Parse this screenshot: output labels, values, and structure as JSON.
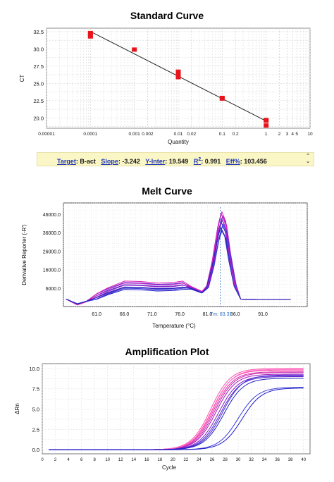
{
  "standard_curve": {
    "title": "Standard Curve",
    "stats": {
      "target_label": "Target",
      "target_value": "B-act",
      "slope_label": "Slope",
      "slope_value": "-3.242",
      "yinter_label": "Y-Inter",
      "yinter_value": "19.549",
      "r2_label": "R",
      "r2_sup": "2",
      "r2_value": "0.991",
      "eff_label": "Eff%",
      "eff_value": "103.456"
    }
  },
  "melt_curve": {
    "title": "Melt Curve"
  },
  "amplification_plot": {
    "title": "Amplification Plot"
  },
  "chart_data": [
    {
      "id": "standard_curve",
      "type": "scatter",
      "title": "Standard Curve",
      "xlabel": "Quantity",
      "ylabel": "CT",
      "xscale": "log",
      "xlim": [
        1e-05,
        10
      ],
      "ylim": [
        18.5,
        33
      ],
      "x_tick_labels": [
        "0.00001",
        "0.0001",
        "0.001",
        "0.002",
        "0.01",
        "0.02",
        "0.1",
        "0.2",
        "1",
        "2",
        "3",
        "4",
        "5",
        "10"
      ],
      "x_ticks": [
        1e-05,
        0.0001,
        0.001,
        0.002,
        0.01,
        0.02,
        0.1,
        0.2,
        1,
        2,
        3,
        4,
        5,
        10
      ],
      "y_ticks": [
        20.0,
        22.5,
        25.0,
        27.5,
        30.0,
        32.5
      ],
      "y_tick_labels": [
        "20.0",
        "22.5",
        "25.0",
        "27.5",
        "30.0",
        "32.5"
      ],
      "grid": true,
      "marker_color": "#e8141b",
      "points": [
        {
          "x": 0.0001,
          "y": 32.3
        },
        {
          "x": 0.0001,
          "y": 32.0
        },
        {
          "x": 0.0001,
          "y": 31.8
        },
        {
          "x": 0.001,
          "y": 29.9
        },
        {
          "x": 0.01,
          "y": 26.7
        },
        {
          "x": 0.01,
          "y": 26.3
        },
        {
          "x": 0.01,
          "y": 25.9
        },
        {
          "x": 0.1,
          "y": 22.9
        },
        {
          "x": 0.1,
          "y": 22.8
        },
        {
          "x": 1,
          "y": 19.7
        },
        {
          "x": 1,
          "y": 19.6
        },
        {
          "x": 1,
          "y": 18.9
        }
      ],
      "fit_line": {
        "slope": -3.242,
        "intercept": 19.549,
        "x_range": [
          0.0001,
          1
        ]
      }
    },
    {
      "id": "melt_curve",
      "type": "line",
      "title": "Melt Curve",
      "xlabel": "Temperature (°C)",
      "ylabel": "Derivative Reporter (-R')",
      "xlim": [
        55.0,
        99.0
      ],
      "ylim": [
        -4000,
        52000
      ],
      "x_ticks": [
        61.0,
        66.0,
        71.0,
        76.0,
        81.0,
        86.0,
        91.0
      ],
      "x_tick_labels": [
        "61.0",
        "66.0",
        "71.0",
        "76.0",
        "81.0",
        "86.0",
        "91.0"
      ],
      "y_ticks": [
        6000,
        16000,
        26000,
        36000,
        46000
      ],
      "y_tick_labels": [
        "6000.0",
        "16000.0",
        "26000.0",
        "36000.0",
        "46000.0"
      ],
      "grid": true,
      "tm_label": "Tm: 83.31",
      "tm_value": 83.31,
      "series_base": [
        [
          55.5,
          0
        ],
        [
          57.5,
          -3000
        ],
        [
          59,
          -1500
        ],
        [
          61,
          1500
        ],
        [
          63,
          4500
        ],
        [
          66,
          8000
        ],
        [
          69,
          7800
        ],
        [
          72,
          7000
        ],
        [
          75,
          7300
        ],
        [
          76.5,
          8000
        ],
        [
          78,
          6600
        ],
        [
          80,
          4000
        ],
        [
          81,
          7000
        ],
        [
          82,
          20000
        ],
        [
          83,
          38000
        ],
        [
          83.6,
          45000
        ],
        [
          84.3,
          40000
        ],
        [
          85,
          25000
        ],
        [
          86,
          8000
        ],
        [
          87,
          0
        ],
        [
          90,
          -200
        ],
        [
          96,
          -200
        ]
      ],
      "series": [
        {
          "color": "#1d1ac9",
          "scale": 0.82,
          "shift": 0.0
        },
        {
          "color": "#3a2fd6",
          "scale": 0.88,
          "shift": 0.1
        },
        {
          "color": "#4b2ad1",
          "scale": 0.92,
          "shift": -0.1
        },
        {
          "color": "#5a23c7",
          "scale": 0.95,
          "shift": 0.05
        },
        {
          "color": "#7a1fd0",
          "scale": 0.97,
          "shift": -0.05
        },
        {
          "color": "#a21ac8",
          "scale": 1.0,
          "shift": 0.15
        },
        {
          "color": "#c21bc5",
          "scale": 1.03,
          "shift": -0.15
        },
        {
          "color": "#e11ab8",
          "scale": 1.05,
          "shift": 0.0
        },
        {
          "color": "#3b3bd8",
          "scale": 0.9,
          "shift": 0.2
        },
        {
          "color": "#2222b8",
          "scale": 0.86,
          "shift": -0.2
        }
      ]
    },
    {
      "id": "amplification_plot",
      "type": "line",
      "title": "Amplification Plot",
      "xlabel": "Cycle",
      "ylabel": "ΔRn",
      "xlim": [
        0,
        41
      ],
      "ylim": [
        -0.5,
        10.6
      ],
      "x_ticks": [
        0,
        2,
        4,
        6,
        8,
        10,
        12,
        14,
        16,
        18,
        20,
        22,
        24,
        26,
        28,
        30,
        32,
        34,
        36,
        38,
        40
      ],
      "y_ticks": [
        0.0,
        2.5,
        5.0,
        7.5,
        10.0
      ],
      "y_tick_labels": [
        "0.0",
        "2.5",
        "5.0",
        "7.5",
        "10.0"
      ],
      "grid": true,
      "series": [
        {
          "color": "#ff4fb0",
          "ct": 25.8,
          "plateau": 10.0
        },
        {
          "color": "#ff3aa0",
          "ct": 26.0,
          "plateau": 9.8
        },
        {
          "color": "#e02aa8",
          "ct": 26.2,
          "plateau": 9.6
        },
        {
          "color": "#c41fb0",
          "ct": 26.4,
          "plateau": 9.5
        },
        {
          "color": "#a81ab8",
          "ct": 26.6,
          "plateau": 9.3
        },
        {
          "color": "#ff6ec7",
          "ct": 26.1,
          "plateau": 9.9
        },
        {
          "color": "#7a1fd0",
          "ct": 27.0,
          "plateau": 9.1
        },
        {
          "color": "#5b21c8",
          "ct": 27.3,
          "plateau": 9.0
        },
        {
          "color": "#3a2fd6",
          "ct": 27.6,
          "plateau": 9.2
        },
        {
          "color": "#2222c0",
          "ct": 27.8,
          "plateau": 8.8
        },
        {
          "color": "#3b3bd8",
          "ct": 30.0,
          "plateau": 7.7
        },
        {
          "color": "#1d1ac9",
          "ct": 30.6,
          "plateau": 7.6
        }
      ]
    }
  ]
}
